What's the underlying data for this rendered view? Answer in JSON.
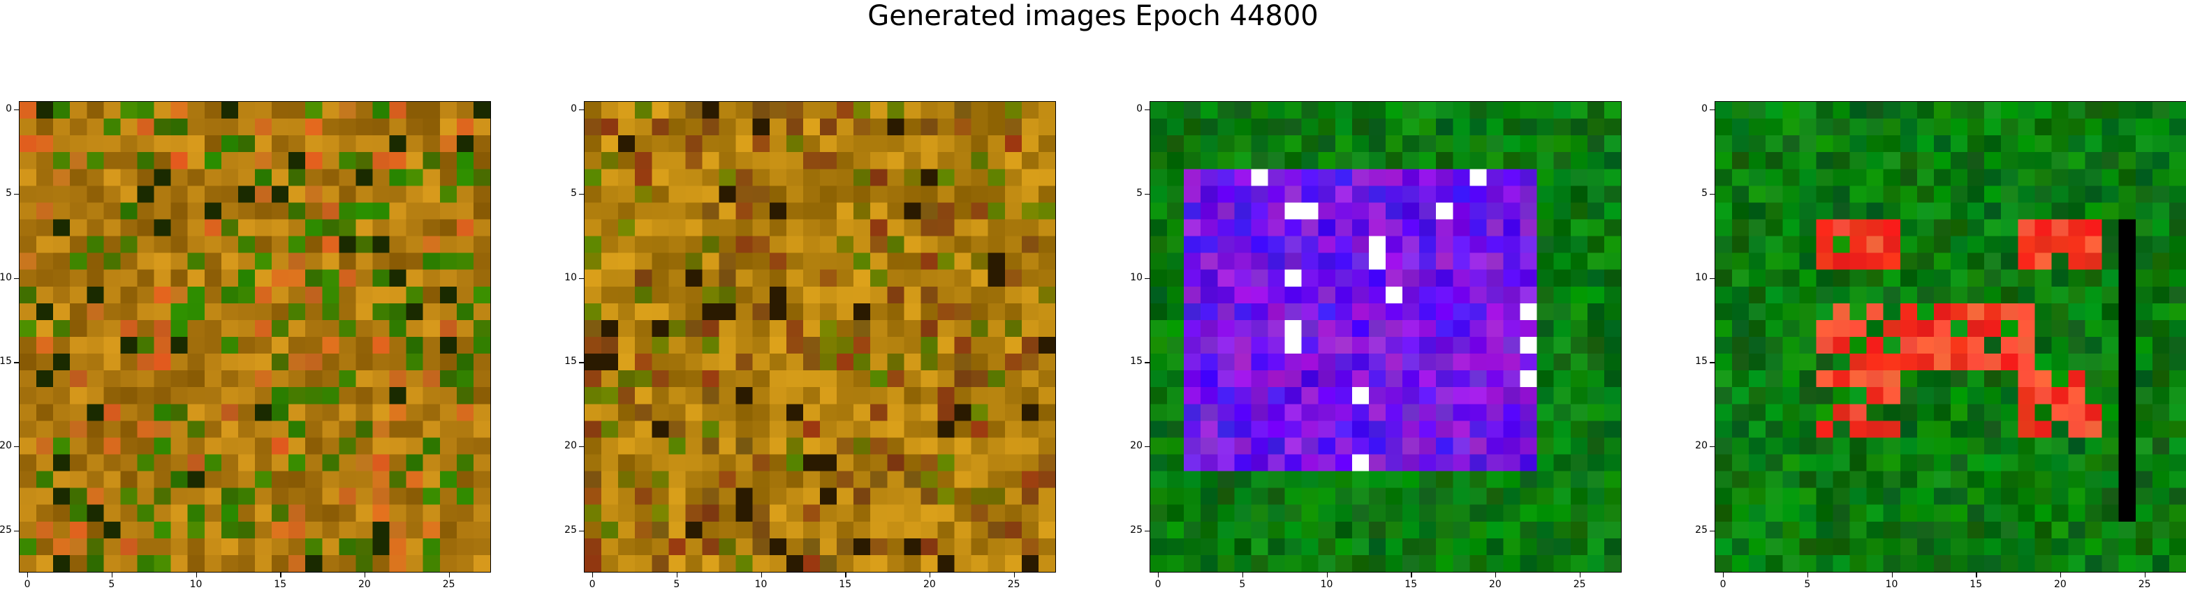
{
  "figure": {
    "title": "Generated images Epoch 44800"
  },
  "chart_data": [
    {
      "type": "heatmap",
      "title": "",
      "xticks": [
        "0",
        "5",
        "10",
        "15",
        "20",
        "25"
      ],
      "yticks": [
        "0",
        "5",
        "10",
        "15",
        "20",
        "25"
      ],
      "xlim": [
        -0.5,
        27.5
      ],
      "ylim": [
        27.5,
        -0.5
      ],
      "grid": false,
      "palette": "olive-orange noise",
      "base_color": "#b07a10",
      "accent_colors": [
        "#3a7d00",
        "#d2691e",
        "#1a2a00"
      ]
    },
    {
      "type": "heatmap",
      "title": "",
      "xticks": [
        "0",
        "5",
        "10",
        "15",
        "20",
        "25"
      ],
      "yticks": [
        "0",
        "5",
        "10",
        "15",
        "20",
        "25"
      ],
      "xlim": [
        -0.5,
        27.5
      ],
      "ylim": [
        27.5,
        -0.5
      ],
      "grid": false,
      "palette": "ochre noise",
      "base_color": "#b5820f",
      "accent_colors": [
        "#8a4a10",
        "#6a7a00",
        "#2a1a00"
      ]
    },
    {
      "type": "heatmap",
      "title": "",
      "xticks": [
        "0",
        "5",
        "10",
        "15",
        "20",
        "25"
      ],
      "yticks": [
        "0",
        "5",
        "10",
        "15",
        "20",
        "25"
      ],
      "xlim": [
        -0.5,
        27.5
      ],
      "ylim": [
        27.5,
        -0.5
      ],
      "grid": false,
      "palette": "blue-violet square on green",
      "base_color": "#0a7a10",
      "accent_colors": [
        "#5a10ff",
        "#8a20f0",
        "#ffffff"
      ]
    },
    {
      "type": "heatmap",
      "title": "",
      "xticks": [
        "0",
        "5",
        "10",
        "15",
        "20",
        "25"
      ],
      "yticks": [
        "0",
        "5",
        "10",
        "15",
        "20",
        "25"
      ],
      "xlim": [
        -0.5,
        27.5
      ],
      "ylim": [
        27.5,
        -0.5
      ],
      "grid": false,
      "palette": "red shapes on green",
      "base_color": "#0a7a10",
      "accent_colors": [
        "#ee2a1a",
        "#ff5a3a",
        "#000000"
      ]
    }
  ]
}
